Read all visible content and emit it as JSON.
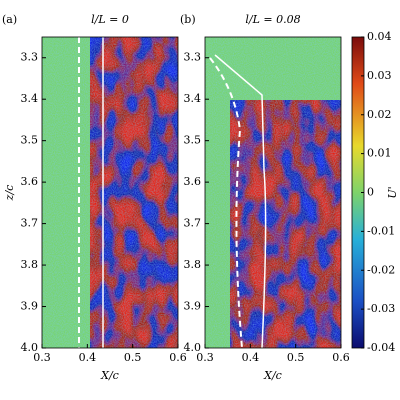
{
  "chart_data": [
    {
      "type": "heatmap",
      "label": "(a)",
      "title": "l/L = 0",
      "x_label": "X/c",
      "y_label": "z/c",
      "xlim": [
        0.3,
        0.6
      ],
      "xticks": [
        0.3,
        0.4,
        0.5,
        0.6
      ],
      "ylim": [
        4.0,
        3.25
      ],
      "yticks": [
        3.3,
        3.4,
        3.5,
        3.6,
        3.7,
        3.8,
        3.9,
        {
          "value": 4.0,
          "label": "4.0"
        }
      ]
    },
    {
      "type": "heatmap",
      "label": "(b)",
      "title": "l/L = 0.08",
      "x_label": "X/c",
      "xlim": [
        0.3,
        0.6
      ],
      "xticks": [
        0.3,
        0.4,
        0.5,
        0.6
      ],
      "ylim": [
        4.0,
        3.25
      ],
      "yticks": [
        3.3,
        3.4,
        3.5,
        3.6,
        3.7,
        3.8,
        3.9,
        {
          "value": 4.0,
          "label": "4.0"
        }
      ]
    }
  ],
  "colorbar": {
    "label": "U'",
    "lim": [
      -0.04,
      0.04
    ],
    "ticks": [
      0.04,
      0.03,
      0.02,
      0.01,
      0,
      -0.01,
      -0.02,
      -0.03,
      -0.04
    ]
  }
}
